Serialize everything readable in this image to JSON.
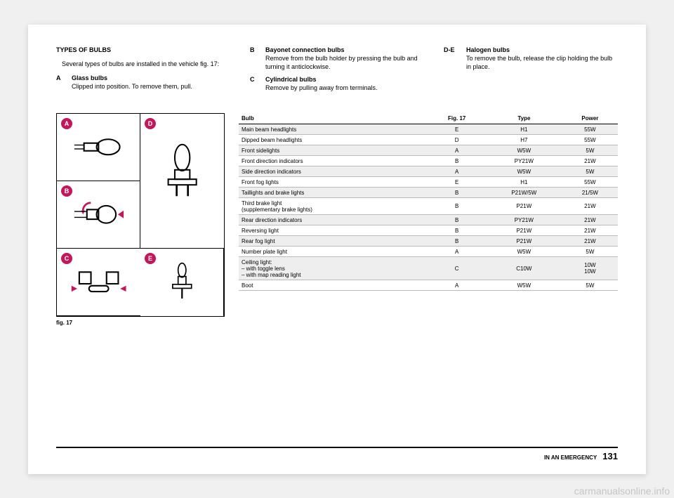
{
  "heading": "TYPES OF BULBS",
  "intro": "Several types of bulbs are installed in the vehicle fig. 17:",
  "bulbTypes": [
    {
      "letter": "A",
      "title": "Glass bulbs",
      "desc": "Clipped into position. To remove them, pull."
    },
    {
      "letter": "B",
      "title": "Bayonet connection bulbs",
      "desc": "Remove from the bulb holder by pressing the bulb and turning it anticlockwise."
    },
    {
      "letter": "C",
      "title": "Cylindrical bulbs",
      "desc": "Remove by pulling away from terminals."
    },
    {
      "letter": "D-E",
      "title": "Halogen bulbs",
      "desc": "To remove the bulb, release the clip holding the bulb in place."
    }
  ],
  "figure": {
    "letters": [
      "A",
      "B",
      "C",
      "D",
      "E"
    ],
    "caption": "fig. 17",
    "accent": "#c2185b"
  },
  "table": {
    "headers": [
      "Bulb",
      "Fig. 17",
      "Type",
      "Power"
    ],
    "rows": [
      [
        "Main beam headlights",
        "E",
        "H1",
        "55W"
      ],
      [
        "Dipped beam headlights",
        "D",
        "H7",
        "55W"
      ],
      [
        "Front sidelights",
        "A",
        "W5W",
        "5W"
      ],
      [
        "Front direction indicators",
        "B",
        "PY21W",
        "21W"
      ],
      [
        "Side direction indicators",
        "A",
        "W5W",
        "5W"
      ],
      [
        "Front fog lights",
        "E",
        "H1",
        "55W"
      ],
      [
        "Taillights and brake lights",
        "B",
        "P21W/5W",
        "21/5W"
      ],
      [
        "Third brake light\n(supplementary brake lights)",
        "B",
        "P21W",
        "21W"
      ],
      [
        "Rear direction indicators",
        "B",
        "PY21W",
        "21W"
      ],
      [
        "Reversing light",
        "B",
        "P21W",
        "21W"
      ],
      [
        "Rear fog light",
        "B",
        "P21W",
        "21W"
      ],
      [
        "Number plate light",
        "A",
        "W5W",
        "5W"
      ],
      [
        "Ceiling light:\n– with toggle lens\n– with map reading light",
        "C",
        "C10W",
        "10W\n10W"
      ],
      [
        "Boot",
        "A",
        "W5W",
        "5W"
      ]
    ]
  },
  "footer": {
    "section": "IN AN EMERGENCY",
    "page": "131"
  },
  "watermark": "carmanualsonline.info"
}
